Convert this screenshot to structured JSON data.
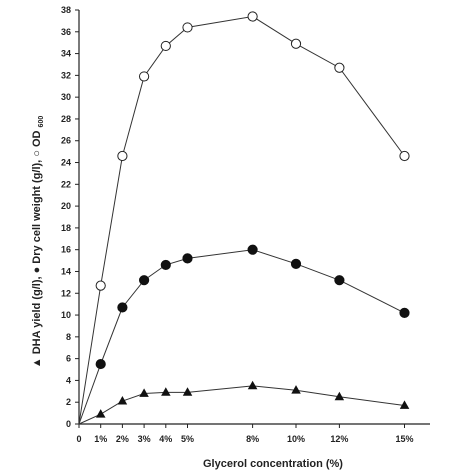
{
  "chart_data": {
    "type": "line",
    "xlabel": "Glycerol concentration (%)",
    "ylabel_parts": {
      "dha": "DHA yield (g/l),",
      "dcw": "Dry cell weight (g/l),",
      "od_prefix": "OD",
      "od_sub": "600"
    },
    "x_ticks": [
      {
        "value": 0,
        "label": "0"
      },
      {
        "value": 1,
        "label": "1%"
      },
      {
        "value": 2,
        "label": "2%"
      },
      {
        "value": 3,
        "label": "3%"
      },
      {
        "value": 4,
        "label": "4%"
      },
      {
        "value": 5,
        "label": "5%"
      },
      {
        "value": 8,
        "label": "8%"
      },
      {
        "value": 10,
        "label": "10%"
      },
      {
        "value": 12,
        "label": "12%"
      },
      {
        "value": 15,
        "label": "15%"
      }
    ],
    "y_ticks": [
      0,
      2,
      4,
      6,
      8,
      10,
      12,
      14,
      16,
      18,
      20,
      22,
      24,
      26,
      28,
      30,
      32,
      34,
      36,
      38
    ],
    "xlim": [
      0,
      16
    ],
    "ylim": [
      0,
      38
    ],
    "grid": false,
    "series": [
      {
        "name": "OD600",
        "marker": "open-circle",
        "x": [
          0,
          1,
          2,
          3,
          4,
          5,
          8,
          10,
          12,
          15
        ],
        "y": [
          0,
          12.7,
          24.6,
          31.9,
          34.7,
          36.4,
          37.4,
          34.9,
          32.7,
          24.6
        ]
      },
      {
        "name": "Dry cell weight (g/l)",
        "marker": "filled-circle",
        "x": [
          0,
          1,
          2,
          3,
          4,
          5,
          8,
          10,
          12,
          15
        ],
        "y": [
          0,
          5.5,
          10.7,
          13.2,
          14.6,
          15.2,
          16.0,
          14.7,
          13.2,
          10.2
        ]
      },
      {
        "name": "DHA yield (g/l)",
        "marker": "filled-triangle",
        "x": [
          0,
          1,
          2,
          3,
          4,
          5,
          8,
          10,
          12,
          15
        ],
        "y": [
          0,
          0.9,
          2.1,
          2.8,
          2.9,
          2.9,
          3.5,
          3.1,
          2.5,
          1.7
        ]
      }
    ]
  }
}
